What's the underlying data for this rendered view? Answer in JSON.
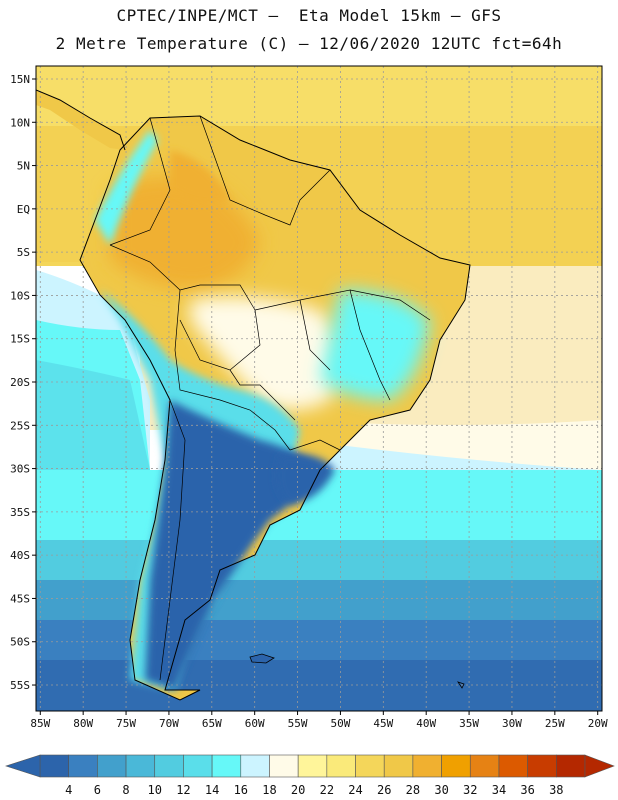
{
  "header": {
    "line1": "CPTEC/INPE/MCT –  Eta Model 15km – GFS",
    "line2": "2 Metre Temperature (C) – 12/06/2020 12UTC fct=64h"
  },
  "map": {
    "lon_range": [
      -85.5,
      -19.5
    ],
    "lat_range": [
      -58,
      16.5
    ],
    "lat_ticks": [
      {
        "value": 15,
        "label": "15N"
      },
      {
        "value": 10,
        "label": "10N"
      },
      {
        "value": 5,
        "label": "5N"
      },
      {
        "value": 0,
        "label": "EQ"
      },
      {
        "value": -5,
        "label": "5S"
      },
      {
        "value": -10,
        "label": "10S"
      },
      {
        "value": -15,
        "label": "15S"
      },
      {
        "value": -20,
        "label": "20S"
      },
      {
        "value": -25,
        "label": "25S"
      },
      {
        "value": -30,
        "label": "30S"
      },
      {
        "value": -35,
        "label": "35S"
      },
      {
        "value": -40,
        "label": "40S"
      },
      {
        "value": -45,
        "label": "45S"
      },
      {
        "value": -50,
        "label": "50S"
      },
      {
        "value": -55,
        "label": "55S"
      }
    ],
    "lon_ticks": [
      {
        "value": -85,
        "label": "85W"
      },
      {
        "value": -80,
        "label": "80W"
      },
      {
        "value": -75,
        "label": "75W"
      },
      {
        "value": -70,
        "label": "70W"
      },
      {
        "value": -65,
        "label": "65W"
      },
      {
        "value": -60,
        "label": "60W"
      },
      {
        "value": -55,
        "label": "55W"
      },
      {
        "value": -50,
        "label": "50W"
      },
      {
        "value": -45,
        "label": "45W"
      },
      {
        "value": -40,
        "label": "40W"
      },
      {
        "value": -35,
        "label": "35W"
      },
      {
        "value": -30,
        "label": "30W"
      },
      {
        "value": -25,
        "label": "25W"
      },
      {
        "value": -20,
        "label": "20W"
      }
    ]
  },
  "colorbar": {
    "labels": [
      "4",
      "6",
      "8",
      "10",
      "12",
      "14",
      "16",
      "18",
      "20",
      "22",
      "24",
      "26",
      "28",
      "30",
      "32",
      "34",
      "36",
      "38"
    ],
    "colors": [
      "#2c64ab",
      "#3a80c0",
      "#42a0cc",
      "#4ab8d8",
      "#52cce0",
      "#5adeea",
      "#66f8f8",
      "#ccf4ff",
      "#fffbe8",
      "#fff59a",
      "#faea7a",
      "#f4d65a",
      "#f0c848",
      "#f0b030",
      "#f0a000",
      "#e68214",
      "#dc5a00",
      "#c83c00",
      "#b42800"
    ]
  }
}
